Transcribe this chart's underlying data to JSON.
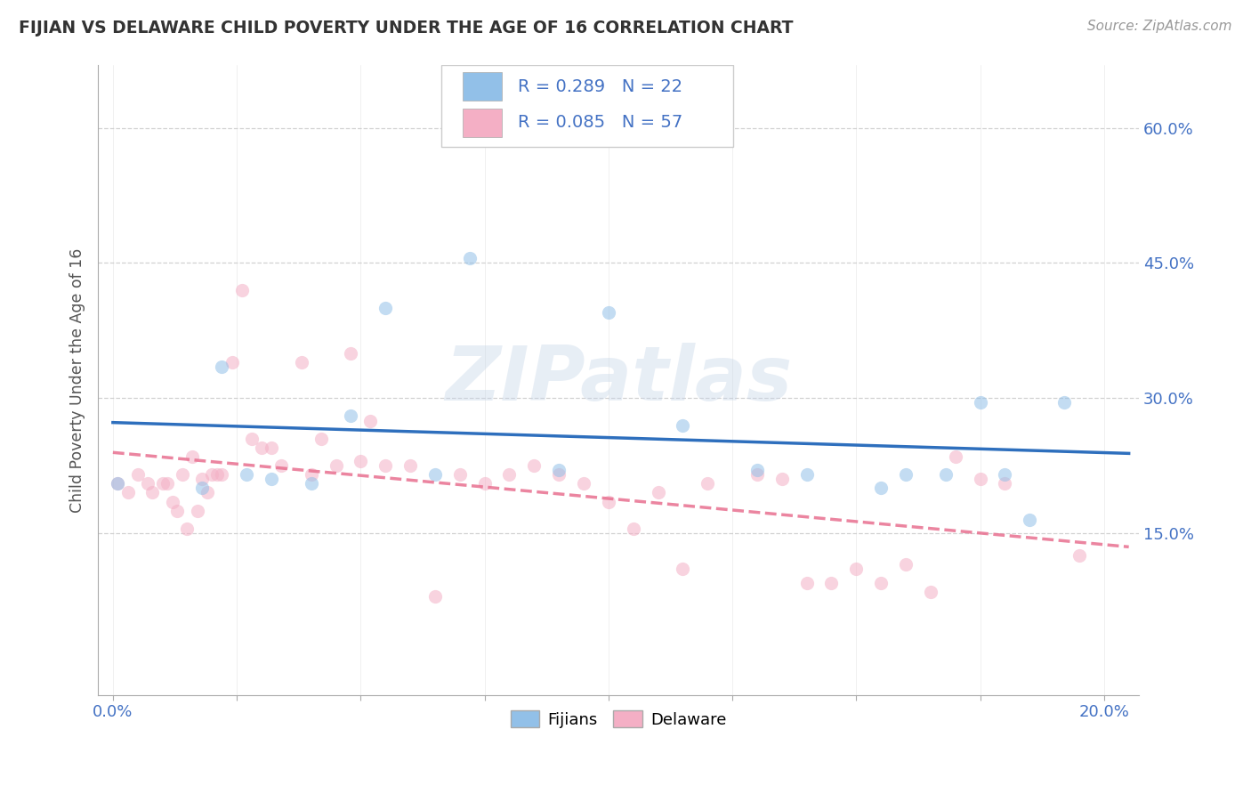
{
  "title": "FIJIAN VS DELAWARE CHILD POVERTY UNDER THE AGE OF 16 CORRELATION CHART",
  "source": "Source: ZipAtlas.com",
  "ylabel": "Child Poverty Under the Age of 16",
  "xlim": [
    -0.003,
    0.207
  ],
  "ylim": [
    -0.03,
    0.67
  ],
  "xtick_positions": [
    0.0,
    0.025,
    0.05,
    0.075,
    0.1,
    0.125,
    0.15,
    0.175,
    0.2
  ],
  "ytick_positions": [
    0.15,
    0.3,
    0.45,
    0.6
  ],
  "ytick_labels": [
    "15.0%",
    "30.0%",
    "45.0%",
    "60.0%"
  ],
  "fijians_color": "#92c0e8",
  "delaware_color": "#f4afc5",
  "fijians_line_color": "#2e6fbd",
  "delaware_line_color": "#e87090",
  "fijian_R": 0.289,
  "fijian_N": 22,
  "delaware_R": 0.085,
  "delaware_N": 57,
  "background_color": "#ffffff",
  "grid_color": "#cccccc",
  "title_color": "#333333",
  "axis_label_color": "#555555",
  "tick_color": "#4472c4",
  "watermark": "ZIPatlas",
  "marker_size": 120,
  "marker_alpha": 0.55,
  "line_width": 2.5,
  "fijians_x": [
    0.001,
    0.018,
    0.022,
    0.027,
    0.032,
    0.04,
    0.048,
    0.055,
    0.065,
    0.072,
    0.09,
    0.1,
    0.115,
    0.13,
    0.14,
    0.155,
    0.16,
    0.168,
    0.175,
    0.18,
    0.185,
    0.192
  ],
  "fijians_y": [
    0.205,
    0.2,
    0.335,
    0.215,
    0.21,
    0.205,
    0.28,
    0.4,
    0.215,
    0.455,
    0.22,
    0.395,
    0.27,
    0.22,
    0.215,
    0.2,
    0.215,
    0.215,
    0.295,
    0.215,
    0.165,
    0.295
  ],
  "delaware_x": [
    0.001,
    0.003,
    0.005,
    0.007,
    0.008,
    0.01,
    0.011,
    0.012,
    0.013,
    0.014,
    0.015,
    0.016,
    0.017,
    0.018,
    0.019,
    0.02,
    0.021,
    0.022,
    0.024,
    0.026,
    0.028,
    0.03,
    0.032,
    0.034,
    0.038,
    0.04,
    0.042,
    0.045,
    0.048,
    0.05,
    0.052,
    0.055,
    0.06,
    0.065,
    0.07,
    0.075,
    0.08,
    0.085,
    0.09,
    0.095,
    0.1,
    0.105,
    0.11,
    0.115,
    0.12,
    0.13,
    0.135,
    0.14,
    0.145,
    0.15,
    0.155,
    0.16,
    0.165,
    0.17,
    0.175,
    0.18,
    0.195
  ],
  "delaware_y": [
    0.205,
    0.195,
    0.215,
    0.205,
    0.195,
    0.205,
    0.205,
    0.185,
    0.175,
    0.215,
    0.155,
    0.235,
    0.175,
    0.21,
    0.195,
    0.215,
    0.215,
    0.215,
    0.34,
    0.42,
    0.255,
    0.245,
    0.245,
    0.225,
    0.34,
    0.215,
    0.255,
    0.225,
    0.35,
    0.23,
    0.275,
    0.225,
    0.225,
    0.08,
    0.215,
    0.205,
    0.215,
    0.225,
    0.215,
    0.205,
    0.185,
    0.155,
    0.195,
    0.11,
    0.205,
    0.215,
    0.21,
    0.095,
    0.095,
    0.11,
    0.095,
    0.115,
    0.085,
    0.235,
    0.21,
    0.205,
    0.125
  ]
}
